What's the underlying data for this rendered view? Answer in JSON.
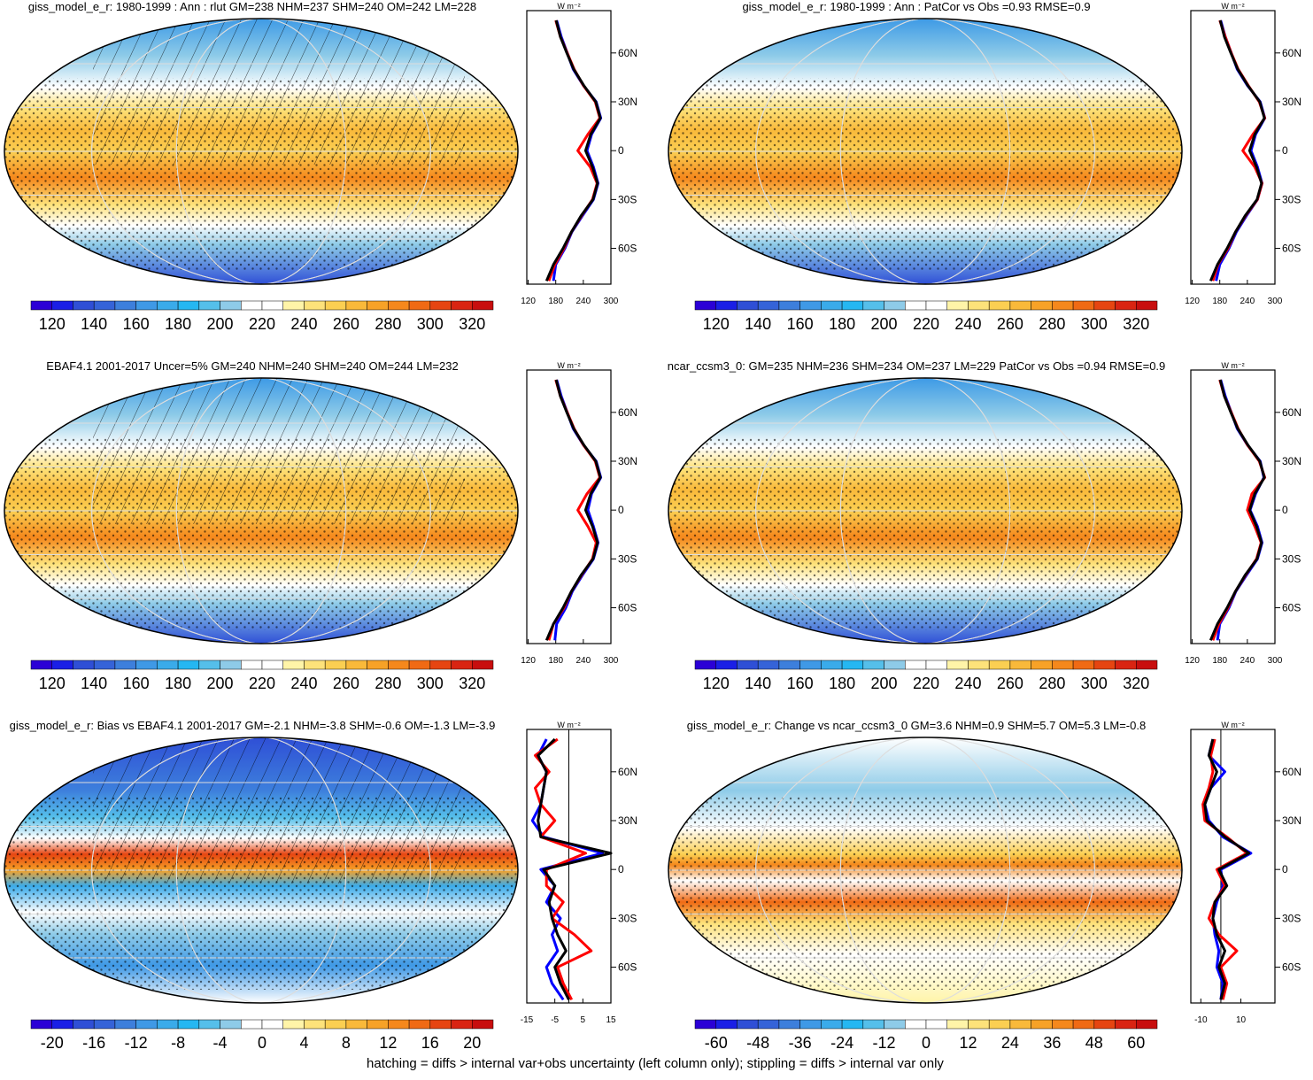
{
  "chart_data": [
    {
      "type": "line",
      "orientation": "horizontal",
      "title": "giss_model_e_r: 1980-1999 : Ann : rlut GM=238 NHM=237 SHM=240 OM=242 LM=228",
      "xlabel": "W m⁻²",
      "x": [
        -80,
        -70,
        -60,
        -50,
        -40,
        -30,
        -20,
        -10,
        0,
        10,
        20,
        30,
        40,
        50,
        60,
        70,
        80
      ],
      "xlim": [
        -82,
        86
      ],
      "xticks": [
        {
          "value": 60,
          "label": "60N"
        },
        {
          "value": 30,
          "label": "30N"
        },
        0,
        {
          "value": -30,
          "label": "30S"
        },
        {
          "value": -60,
          "label": "60S"
        }
      ],
      "ylim": [
        117,
        300
      ],
      "yticks": [
        120,
        180,
        240,
        300
      ],
      "series": [
        {
          "color": "#0000ff",
          "values": [
            175,
            180,
            200,
            215,
            238,
            262,
            272,
            262,
            248,
            258,
            278,
            268,
            240,
            218,
            205,
            192,
            182
          ]
        },
        {
          "color": "#ff0000",
          "values": [
            165,
            178,
            198,
            214,
            236,
            260,
            270,
            255,
            228,
            250,
            276,
            266,
            240,
            220,
            205,
            190,
            180
          ]
        },
        {
          "color": "#000000",
          "values": [
            160,
            175,
            196,
            214,
            235,
            261,
            271,
            260,
            245,
            256,
            277,
            267,
            241,
            219,
            204,
            190,
            181
          ]
        }
      ],
      "colorbar_ticks": [
        120,
        140,
        160,
        180,
        200,
        220,
        240,
        260,
        280,
        300,
        320
      ]
    },
    {
      "type": "line",
      "orientation": "horizontal",
      "title": "giss_model_e_r: 1980-1999 : Ann : PatCor vs Obs =0.93 RMSE=0.9",
      "xlabel": "W m⁻²",
      "x": [
        -80,
        -70,
        -60,
        -50,
        -40,
        -30,
        -20,
        -10,
        0,
        10,
        20,
        30,
        40,
        50,
        60,
        70,
        80
      ],
      "xlim": [
        -82,
        86
      ],
      "xticks": [
        {
          "value": 60,
          "label": "60N"
        },
        {
          "value": 30,
          "label": "30N"
        },
        0,
        {
          "value": -30,
          "label": "30S"
        },
        {
          "value": -60,
          "label": "60S"
        }
      ],
      "ylim": [
        117,
        300
      ],
      "yticks": [
        120,
        180,
        240,
        300
      ],
      "series": [
        {
          "color": "#0000ff",
          "values": [
            172,
            180,
            200,
            216,
            238,
            262,
            272,
            262,
            248,
            258,
            278,
            268,
            240,
            218,
            205,
            192,
            182
          ]
        },
        {
          "color": "#ff0000",
          "values": [
            165,
            176,
            198,
            214,
            236,
            262,
            272,
            256,
            230,
            252,
            278,
            266,
            242,
            220,
            205,
            192,
            180
          ]
        },
        {
          "color": "#000000",
          "values": [
            160,
            175,
            196,
            214,
            235,
            261,
            271,
            260,
            245,
            256,
            277,
            267,
            241,
            219,
            204,
            190,
            181
          ]
        }
      ],
      "colorbar_ticks": [
        120,
        140,
        160,
        180,
        200,
        220,
        240,
        260,
        280,
        300,
        320
      ]
    },
    {
      "type": "line",
      "orientation": "horizontal",
      "title": "EBAF4.1 2001-2017 Uncer=5% GM=240 NHM=240 SHM=240 OM=244 LM=232",
      "xlabel": "W m⁻²",
      "x": [
        -80,
        -70,
        -60,
        -50,
        -40,
        -30,
        -20,
        -10,
        0,
        10,
        20,
        30,
        40,
        50,
        60,
        70,
        80
      ],
      "xlim": [
        -82,
        86
      ],
      "xticks": [
        {
          "value": 60,
          "label": "60N"
        },
        {
          "value": 30,
          "label": "30N"
        },
        0,
        {
          "value": -30,
          "label": "30S"
        },
        {
          "value": -60,
          "label": "60S"
        }
      ],
      "ylim": [
        117,
        300
      ],
      "yticks": [
        120,
        180,
        240,
        300
      ],
      "series": [
        {
          "color": "#0000ff",
          "values": [
            178,
            182,
            202,
            216,
            238,
            262,
            272,
            262,
            250,
            258,
            278,
            268,
            240,
            218,
            205,
            192,
            182
          ]
        },
        {
          "color": "#ff0000",
          "values": [
            165,
            175,
            198,
            214,
            236,
            260,
            268,
            250,
            228,
            248,
            276,
            266,
            240,
            220,
            205,
            190,
            180
          ]
        },
        {
          "color": "#000000",
          "values": [
            160,
            175,
            196,
            214,
            235,
            261,
            271,
            260,
            245,
            256,
            277,
            267,
            241,
            219,
            204,
            190,
            181
          ]
        }
      ],
      "colorbar_ticks": [
        120,
        140,
        160,
        180,
        200,
        220,
        240,
        260,
        280,
        300,
        320
      ]
    },
    {
      "type": "line",
      "orientation": "horizontal",
      "title": "ncar_ccsm3_0: GM=235 NHM=236 SHM=234 OM=237 LM=229 PatCor vs Obs =0.94 RMSE=0.9",
      "xlabel": "W m⁻²",
      "x": [
        -80,
        -70,
        -60,
        -50,
        -40,
        -30,
        -20,
        -10,
        0,
        10,
        20,
        30,
        40,
        50,
        60,
        70,
        80
      ],
      "xlim": [
        -82,
        86
      ],
      "xticks": [
        {
          "value": 60,
          "label": "60N"
        },
        {
          "value": 30,
          "label": "30N"
        },
        0,
        {
          "value": -30,
          "label": "30S"
        },
        {
          "value": -60,
          "label": "60S"
        }
      ],
      "ylim": [
        117,
        300
      ],
      "yticks": [
        120,
        180,
        240,
        300
      ],
      "series": [
        {
          "color": "#0000ff",
          "values": [
            175,
            180,
            200,
            215,
            238,
            262,
            272,
            262,
            246,
            258,
            276,
            268,
            240,
            218,
            205,
            192,
            182
          ]
        },
        {
          "color": "#ff0000",
          "values": [
            165,
            178,
            198,
            214,
            236,
            260,
            270,
            256,
            240,
            250,
            278,
            266,
            240,
            220,
            205,
            190,
            180
          ]
        },
        {
          "color": "#000000",
          "values": [
            160,
            175,
            196,
            214,
            235,
            261,
            271,
            260,
            245,
            256,
            277,
            267,
            241,
            219,
            204,
            190,
            181
          ]
        }
      ],
      "colorbar_ticks": [
        120,
        140,
        160,
        180,
        200,
        220,
        240,
        260,
        280,
        300,
        320
      ]
    },
    {
      "type": "line",
      "orientation": "horizontal",
      "title": "giss_model_e_r: Bias vs EBAF4.1 2001-2017 GM=-2.1 NHM=-3.8 SHM=-0.6 OM=-1.3 LM=-3.9",
      "xlabel": "W m⁻²",
      "x": [
        -80,
        -70,
        -60,
        -50,
        -40,
        -30,
        -20,
        -10,
        0,
        10,
        20,
        30,
        40,
        50,
        60,
        70,
        80
      ],
      "xlim": [
        -82,
        86
      ],
      "xticks": [
        {
          "value": 60,
          "label": "60N"
        },
        {
          "value": 30,
          "label": "30N"
        },
        0,
        {
          "value": -30,
          "label": "30S"
        },
        {
          "value": -60,
          "label": "60S"
        }
      ],
      "ylim": [
        -15,
        15
      ],
      "yticks": [
        -15,
        -5,
        5,
        15
      ],
      "reference_line": 0,
      "series": [
        {
          "color": "#0000ff",
          "values": [
            -2,
            -6,
            -8,
            -4,
            -6,
            -3,
            -8,
            -5,
            -10,
            12,
            -9,
            -13,
            -10,
            -9,
            -8,
            -11,
            -8
          ]
        },
        {
          "color": "#ff0000",
          "values": [
            1,
            -2,
            -4,
            8,
            2,
            -6,
            -2,
            -8,
            -8,
            6,
            -10,
            -5,
            -10,
            -12,
            -7,
            -12,
            -4
          ]
        },
        {
          "color": "#000000",
          "values": [
            0,
            -3,
            -5,
            -1,
            -4,
            -6,
            -7,
            -5,
            -9,
            15,
            -10,
            -11,
            -10,
            -9,
            -8,
            -11,
            -5
          ]
        }
      ],
      "colorbar_ticks": [
        -20,
        -16,
        -12,
        -8,
        -4,
        0,
        4,
        8,
        12,
        16,
        20
      ]
    },
    {
      "type": "line",
      "orientation": "horizontal",
      "title": "giss_model_e_r: Change vs ncar_ccsm3_0 GM=3.6 NHM=0.9 SHM=5.7 OM=5.3 LM=-0.8",
      "xlabel": "W m⁻²",
      "x": [
        -80,
        -70,
        -60,
        -50,
        -40,
        -30,
        -20,
        -10,
        0,
        10,
        20,
        30,
        40,
        50,
        60,
        70,
        80
      ],
      "xlim": [
        -82,
        86
      ],
      "xticks": [
        {
          "value": 60,
          "label": "60N"
        },
        {
          "value": 30,
          "label": "30N"
        },
        0,
        {
          "value": -30,
          "label": "30S"
        },
        {
          "value": -60,
          "label": "60S"
        }
      ],
      "ylim": [
        -15,
        27
      ],
      "yticks": [
        -10,
        10
      ],
      "reference_line": 0,
      "series": [
        {
          "color": "#0000ff",
          "values": [
            0,
            1,
            -2,
            -1,
            -3,
            -4,
            -2,
            1,
            0,
            15,
            1,
            -6,
            -8,
            -5,
            2,
            -6,
            -4
          ]
        },
        {
          "color": "#ff0000",
          "values": [
            1,
            3,
            0,
            8,
            -1,
            -6,
            -3,
            2,
            -2,
            13,
            3,
            -8,
            -9,
            -6,
            -4,
            -5,
            -3
          ]
        },
        {
          "color": "#000000",
          "values": [
            0,
            2,
            -1,
            2,
            -2,
            -4,
            -3,
            3,
            -1,
            14,
            2,
            -7,
            -8,
            -5,
            -2,
            -6,
            -4
          ]
        }
      ],
      "colorbar_ticks": [
        -60,
        -48,
        -36,
        -24,
        -12,
        0,
        12,
        24,
        36,
        48,
        60
      ]
    }
  ],
  "colorbar_colors": [
    "#2b00d6",
    "#1a1fe6",
    "#2f4fd6",
    "#3563d8",
    "#3d7fdc",
    "#3f99e6",
    "#3aabea",
    "#25b7f2",
    "#55bfea",
    "#8ecbe8",
    "#ffffff",
    "#ffffff",
    "#fff4a8",
    "#fde27a",
    "#fbcf52",
    "#f9b93a",
    "#f7a227",
    "#f5881c",
    "#f06a14",
    "#e64511",
    "#d92412",
    "#c80e0e"
  ],
  "footnote": "hatching = diffs > internal var+obs uncertainty (left column only); stippling = diffs > internal var only"
}
